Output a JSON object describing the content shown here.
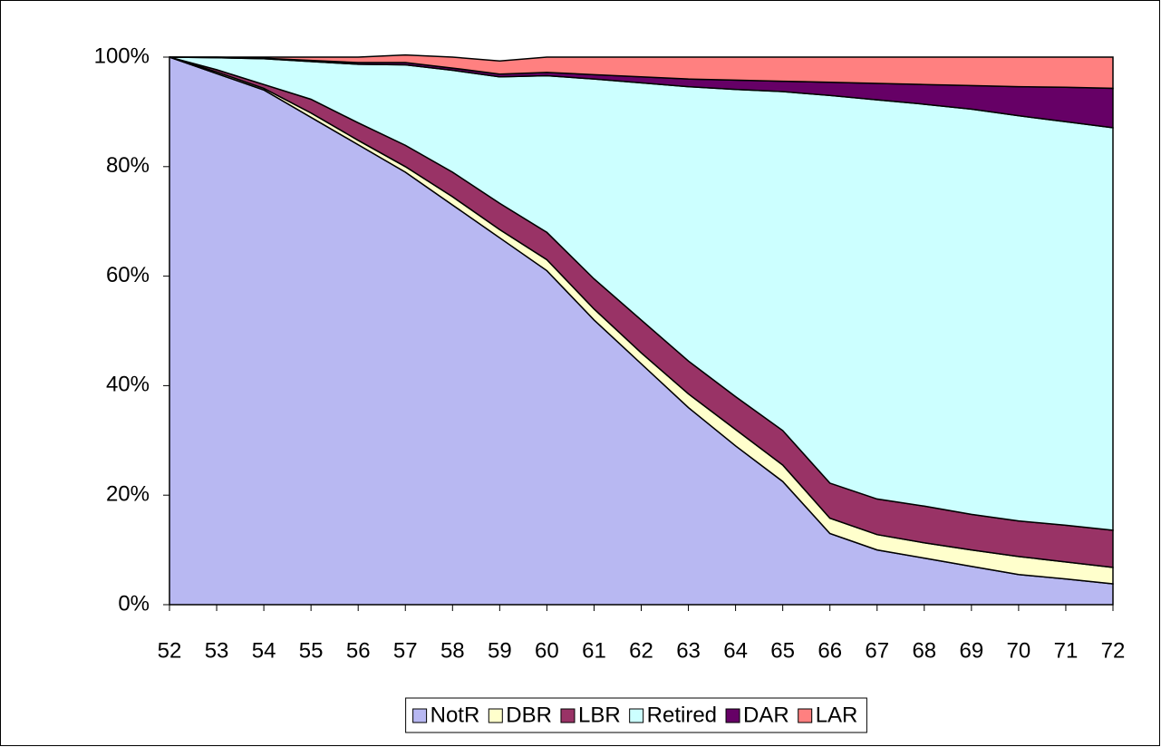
{
  "chart_data": {
    "type": "stacked-area",
    "x": [
      52,
      53,
      54,
      55,
      56,
      57,
      58,
      59,
      60,
      61,
      62,
      63,
      64,
      65,
      66,
      67,
      68,
      69,
      70,
      71,
      72
    ],
    "xlim": [
      52,
      72
    ],
    "ylim": [
      0,
      100
    ],
    "yticks": [
      {
        "value": 0,
        "label": "0%"
      },
      {
        "value": 20,
        "label": "20%"
      },
      {
        "value": 40,
        "label": "40%"
      },
      {
        "value": 60,
        "label": "60%"
      },
      {
        "value": 80,
        "label": "80%"
      },
      {
        "value": 100,
        "label": "100%"
      }
    ],
    "legend": "bottom",
    "series": [
      {
        "name": "NotR",
        "color": "#b8b8f2",
        "values": [
          100,
          97,
          94,
          89,
          84,
          79,
          73,
          67,
          61,
          52,
          44,
          36,
          29,
          22.5,
          13,
          10,
          8.5,
          7,
          5.5,
          4.7,
          3.8
        ]
      },
      {
        "name": "DBR",
        "color": "#ffffcc",
        "values": [
          0,
          0.3,
          0.3,
          0.8,
          0.8,
          1,
          1.5,
          1.5,
          2,
          2,
          2,
          2.5,
          3,
          3,
          2.8,
          2.8,
          2.8,
          3,
          3.3,
          3.1,
          3
        ]
      },
      {
        "name": "LBR",
        "color": "#993366",
        "values": [
          0,
          0.4,
          0.7,
          2.5,
          3.2,
          3.9,
          4.5,
          4.8,
          5,
          5.5,
          6,
          6,
          6,
          6.3,
          6.4,
          6.5,
          6.7,
          6.5,
          6.5,
          6.7,
          6.8
        ]
      },
      {
        "name": "Retired",
        "color": "#ccffff",
        "values": [
          0,
          2.2,
          4.7,
          6.9,
          10.7,
          14.7,
          18.6,
          23.1,
          28.6,
          36.5,
          43.3,
          50.1,
          56.1,
          61.9,
          70.8,
          72.9,
          73.4,
          74,
          74,
          73.7,
          73.5
        ]
      },
      {
        "name": "DAR",
        "color": "#660066",
        "values": [
          0,
          0.1,
          0.1,
          0.2,
          0.3,
          0.4,
          0.4,
          0.5,
          0.6,
          0.8,
          1.1,
          1.4,
          1.7,
          1.9,
          2.4,
          3,
          3.6,
          4.3,
          5.3,
          6.3,
          7.2
        ]
      },
      {
        "name": "LAR",
        "color": "#ff8080",
        "values": [
          0,
          0,
          0.2,
          0.6,
          1,
          1.4,
          2,
          2.4,
          2.8,
          3.2,
          3.6,
          4,
          4.2,
          4.4,
          4.6,
          4.8,
          5,
          5.2,
          5.4,
          5.5,
          5.7
        ]
      }
    ]
  }
}
